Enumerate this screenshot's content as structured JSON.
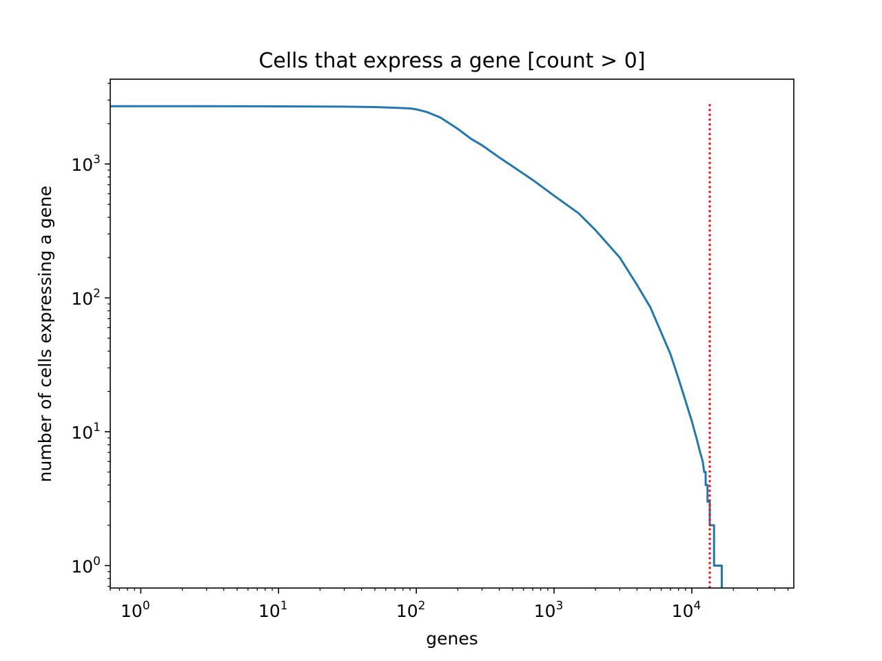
{
  "chart_data": {
    "type": "line",
    "title": "Cells that express a gene [count > 0]",
    "xlabel": "genes",
    "ylabel": "number of cells expressing a gene",
    "x_scale": "log",
    "y_scale": "log",
    "xlim": [
      0.6,
      55000
    ],
    "ylim": [
      0.68,
      4300
    ],
    "grid": false,
    "x_ticks": [
      {
        "base": "10",
        "exp": "0",
        "value": 1
      },
      {
        "base": "10",
        "exp": "1",
        "value": 10
      },
      {
        "base": "10",
        "exp": "2",
        "value": 100
      },
      {
        "base": "10",
        "exp": "3",
        "value": 1000
      },
      {
        "base": "10",
        "exp": "4",
        "value": 10000
      }
    ],
    "y_ticks": [
      {
        "base": "10",
        "exp": "0",
        "value": 1
      },
      {
        "base": "10",
        "exp": "1",
        "value": 10
      },
      {
        "base": "10",
        "exp": "2",
        "value": 100
      },
      {
        "base": "10",
        "exp": "3",
        "value": 1000
      }
    ],
    "series": [
      {
        "color": "#1f77b4",
        "points": [
          [
            0.6,
            2700
          ],
          [
            1,
            2700
          ],
          [
            3,
            2700
          ],
          [
            10,
            2695
          ],
          [
            30,
            2680
          ],
          [
            50,
            2660
          ],
          [
            70,
            2630
          ],
          [
            90,
            2600
          ],
          [
            100,
            2560
          ],
          [
            120,
            2440
          ],
          [
            150,
            2220
          ],
          [
            200,
            1830
          ],
          [
            250,
            1540
          ],
          [
            300,
            1380
          ],
          [
            400,
            1120
          ],
          [
            500,
            960
          ],
          [
            700,
            760
          ],
          [
            1000,
            580
          ],
          [
            1500,
            430
          ],
          [
            2000,
            320
          ],
          [
            3000,
            200
          ],
          [
            4000,
            125
          ],
          [
            5000,
            85
          ],
          [
            6000,
            55
          ],
          [
            7000,
            38
          ],
          [
            8000,
            25
          ],
          [
            9000,
            17
          ],
          [
            10000,
            12
          ],
          [
            10800,
            9
          ],
          [
            11500,
            7
          ],
          [
            12000,
            6
          ],
          [
            12300,
            5
          ],
          [
            12300,
            5
          ],
          [
            12600,
            5
          ],
          [
            12600,
            4
          ],
          [
            13000,
            4
          ],
          [
            13000,
            3
          ],
          [
            13500,
            3
          ],
          [
            13500,
            2
          ],
          [
            14500,
            2
          ],
          [
            14500,
            1
          ],
          [
            16500,
            1
          ],
          [
            16500,
            0.68
          ]
        ]
      }
    ],
    "threshold_line": {
      "x": 13500,
      "y_top": 2800,
      "color": "#ff0000",
      "style": "dotted"
    }
  }
}
